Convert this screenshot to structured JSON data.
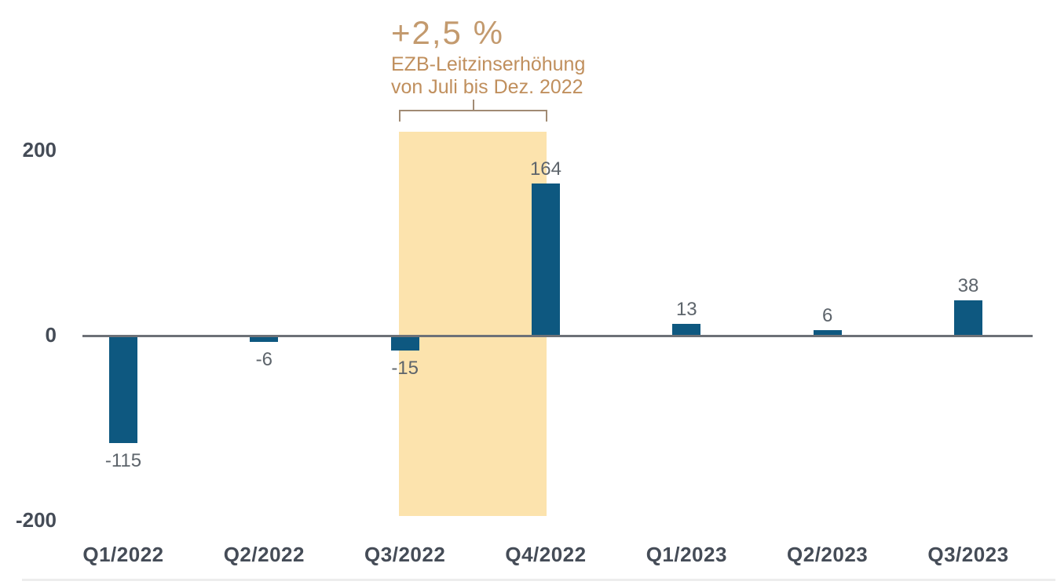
{
  "chart_data": {
    "type": "bar",
    "title": "",
    "xlabel": "",
    "ylabel": "",
    "categories": [
      "Q1/2022",
      "Q2/2022",
      "Q3/2022",
      "Q4/2022",
      "Q1/2023",
      "Q2/2023",
      "Q3/2023"
    ],
    "values": [
      -115,
      -6,
      -15,
      164,
      13,
      6,
      38
    ],
    "value_labels": [
      "-115",
      "-6",
      "-15",
      "164",
      "13",
      "6",
      "38"
    ],
    "y_ticks": [
      {
        "label": "200",
        "value": 200
      },
      {
        "label": "0",
        "value": 0
      },
      {
        "label": "-200",
        "value": -200
      }
    ],
    "ylim": [
      -220,
      235
    ],
    "grid": "off",
    "legend": "none",
    "bar_color": "#0e5880",
    "axis": {
      "zero_line_color": "#6d7177",
      "category_label_color": "#454c57",
      "tick_label_color": "#454c57",
      "value_label_color": "#5d646b"
    },
    "highlight": {
      "from_category": "Q3/2022",
      "to_category": "Q4/2022",
      "color": "#fce3ad"
    },
    "annotation": {
      "title": "+2,5 %",
      "line1": "EZB-Leitzinserhöhung",
      "line2": "von Juli bis Dez. 2022",
      "title_color": "#c39a6e",
      "text_color": "#c08f5d",
      "bracket_color": "#a18b74"
    }
  }
}
